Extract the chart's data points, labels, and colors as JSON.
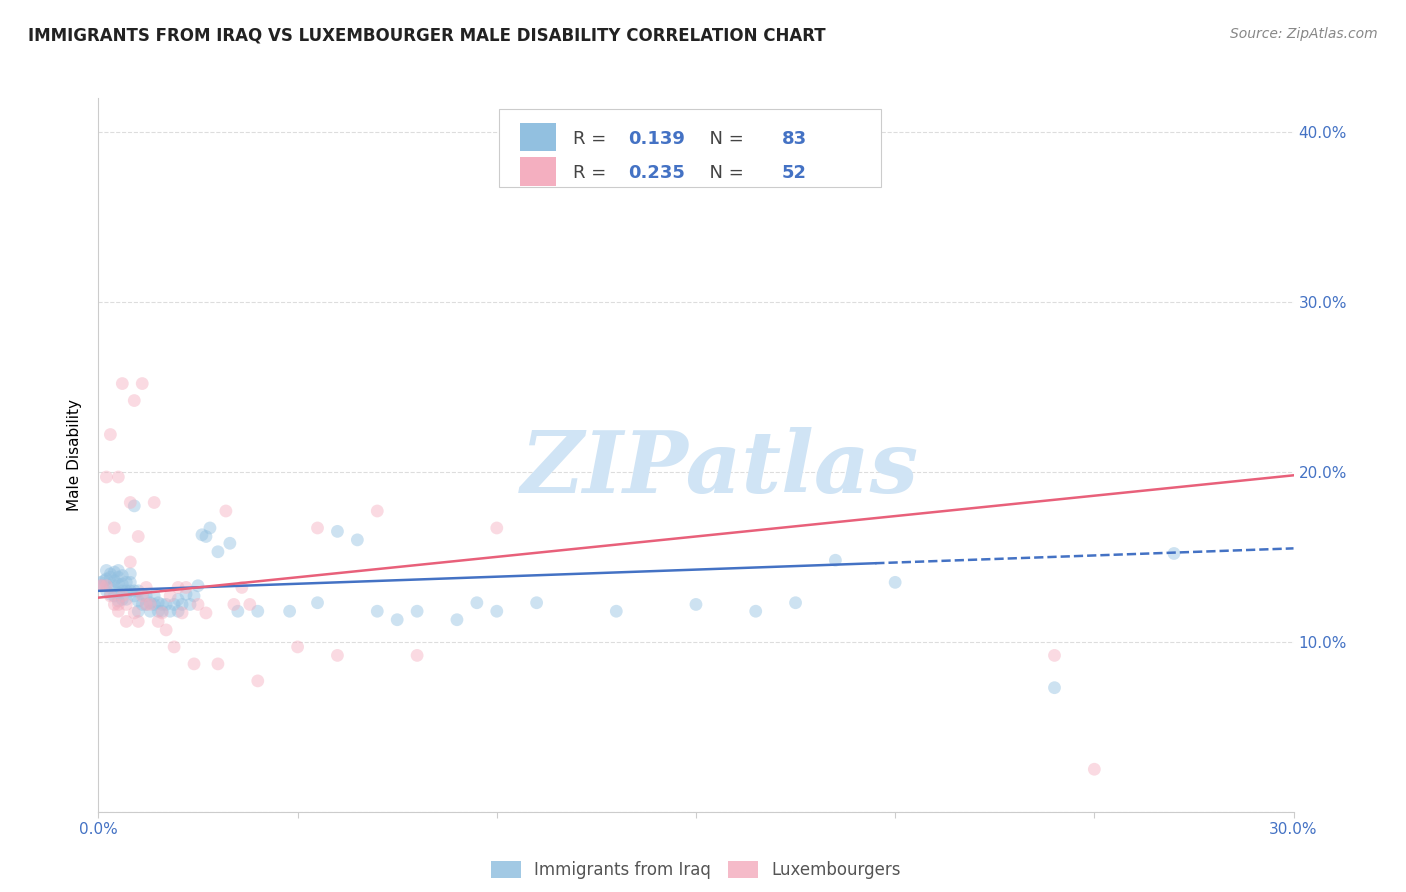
{
  "title": "IMMIGRANTS FROM IRAQ VS LUXEMBOURGER MALE DISABILITY CORRELATION CHART",
  "source": "Source: ZipAtlas.com",
  "xlim": [
    0.0,
    0.3
  ],
  "ylim": [
    0.0,
    0.42
  ],
  "xtick_positions": [
    0.0,
    0.05,
    0.1,
    0.15,
    0.2,
    0.25,
    0.3
  ],
  "xtick_labels": [
    "0.0%",
    "",
    "",
    "",
    "",
    "",
    "30.0%"
  ],
  "ytick_positions": [
    0.0,
    0.1,
    0.2,
    0.3,
    0.4
  ],
  "ytick_labels": [
    "",
    "10.0%",
    "20.0%",
    "30.0%",
    "40.0%"
  ],
  "blue_scatter_x": [
    0.0005,
    0.001,
    0.0015,
    0.002,
    0.002,
    0.002,
    0.003,
    0.003,
    0.003,
    0.003,
    0.004,
    0.004,
    0.004,
    0.004,
    0.005,
    0.005,
    0.005,
    0.005,
    0.005,
    0.006,
    0.006,
    0.006,
    0.006,
    0.007,
    0.007,
    0.007,
    0.008,
    0.008,
    0.008,
    0.009,
    0.009,
    0.009,
    0.01,
    0.01,
    0.01,
    0.011,
    0.011,
    0.012,
    0.012,
    0.013,
    0.013,
    0.014,
    0.014,
    0.015,
    0.015,
    0.016,
    0.016,
    0.017,
    0.018,
    0.019,
    0.02,
    0.02,
    0.021,
    0.022,
    0.023,
    0.024,
    0.025,
    0.026,
    0.027,
    0.028,
    0.03,
    0.033,
    0.035,
    0.04,
    0.048,
    0.055,
    0.06,
    0.065,
    0.07,
    0.075,
    0.08,
    0.09,
    0.095,
    0.1,
    0.11,
    0.13,
    0.15,
    0.165,
    0.175,
    0.185,
    0.2,
    0.24,
    0.27
  ],
  "blue_scatter_y": [
    0.135,
    0.133,
    0.136,
    0.13,
    0.137,
    0.142,
    0.128,
    0.132,
    0.138,
    0.14,
    0.127,
    0.133,
    0.136,
    0.141,
    0.124,
    0.129,
    0.134,
    0.138,
    0.142,
    0.125,
    0.13,
    0.134,
    0.139,
    0.125,
    0.13,
    0.135,
    0.13,
    0.135,
    0.14,
    0.127,
    0.13,
    0.18,
    0.118,
    0.124,
    0.13,
    0.122,
    0.128,
    0.122,
    0.127,
    0.118,
    0.123,
    0.122,
    0.127,
    0.118,
    0.123,
    0.118,
    0.122,
    0.122,
    0.118,
    0.122,
    0.118,
    0.125,
    0.122,
    0.128,
    0.122,
    0.127,
    0.133,
    0.163,
    0.162,
    0.167,
    0.153,
    0.158,
    0.118,
    0.118,
    0.118,
    0.123,
    0.165,
    0.16,
    0.118,
    0.113,
    0.118,
    0.113,
    0.123,
    0.118,
    0.123,
    0.118,
    0.122,
    0.118,
    0.123,
    0.148,
    0.135,
    0.073,
    0.152
  ],
  "pink_scatter_x": [
    0.0005,
    0.001,
    0.002,
    0.002,
    0.003,
    0.003,
    0.004,
    0.004,
    0.005,
    0.005,
    0.005,
    0.006,
    0.006,
    0.007,
    0.007,
    0.008,
    0.008,
    0.009,
    0.009,
    0.01,
    0.01,
    0.011,
    0.011,
    0.012,
    0.012,
    0.013,
    0.014,
    0.015,
    0.016,
    0.017,
    0.018,
    0.019,
    0.02,
    0.021,
    0.022,
    0.024,
    0.025,
    0.027,
    0.03,
    0.032,
    0.034,
    0.036,
    0.038,
    0.04,
    0.05,
    0.055,
    0.06,
    0.07,
    0.08,
    0.1,
    0.24,
    0.25
  ],
  "pink_scatter_y": [
    0.133,
    0.133,
    0.133,
    0.197,
    0.127,
    0.222,
    0.122,
    0.167,
    0.118,
    0.122,
    0.197,
    0.127,
    0.252,
    0.112,
    0.122,
    0.182,
    0.147,
    0.117,
    0.242,
    0.112,
    0.162,
    0.127,
    0.252,
    0.122,
    0.132,
    0.122,
    0.182,
    0.112,
    0.117,
    0.107,
    0.127,
    0.097,
    0.132,
    0.117,
    0.132,
    0.087,
    0.122,
    0.117,
    0.087,
    0.177,
    0.122,
    0.132,
    0.122,
    0.077,
    0.097,
    0.167,
    0.092,
    0.177,
    0.092,
    0.167,
    0.092,
    0.025
  ],
  "blue_line_x": [
    0.0,
    0.3
  ],
  "blue_line_y": [
    0.13,
    0.155
  ],
  "blue_line_solid_end_x": 0.195,
  "pink_line_x": [
    0.0,
    0.3
  ],
  "pink_line_y": [
    0.126,
    0.198
  ],
  "blue_color": "#92c0e0",
  "pink_color": "#f4afc0",
  "blue_line_color": "#4472c4",
  "pink_line_color": "#e8607a",
  "marker_size": 85,
  "marker_alpha": 0.45,
  "watermark": "ZIPatlas",
  "watermark_color": "#d0e4f5",
  "background_color": "#ffffff",
  "grid_color": "#dddddd",
  "axis_color": "#cccccc",
  "tick_label_color": "#4472c4",
  "title_fontsize": 12,
  "source_fontsize": 10,
  "ylabel_label": "Male Disability",
  "ylabel_fontsize": 11
}
